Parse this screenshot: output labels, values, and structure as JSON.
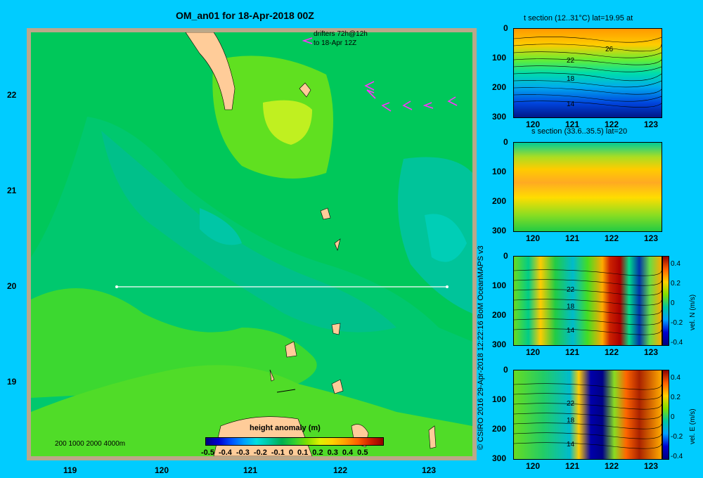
{
  "title": "OM_an01 for 18-Apr-2018 00Z",
  "map": {
    "y_ticks": [
      "22",
      "21",
      "20",
      "19"
    ],
    "x_ticks": [
      "119",
      "120",
      "121",
      "122",
      "123"
    ],
    "drifters_label_line1": "drifters 72h@12h",
    "drifters_label_line2": "to 18-Apr 12Z",
    "depth_legend": "200  1000  2000  4000m",
    "section_lat": 20
  },
  "colorbar": {
    "title": "height anomaly  (m)",
    "ticks": [
      "-0.5",
      "-0.4",
      "-0.3",
      "-0.2",
      "-0.1",
      "0",
      "0.1",
      "0.2",
      "0.3",
      "0.4",
      "0.5"
    ],
    "colors": [
      "#000080",
      "#0000d0",
      "#0050ff",
      "#00a0ff",
      "#00e0e0",
      "#00c8a0",
      "#00b050",
      "#30d030",
      "#80e000",
      "#e0f000",
      "#ffd000",
      "#ffa000",
      "#ff6000",
      "#d02000",
      "#900000"
    ]
  },
  "copyright": "© CSIRO 2016   29-Apr-2018 12:22:16 BoM OceanMAPS v3",
  "panels": [
    {
      "title": "t section (12..31°C) lat=19.95 at",
      "contours": [
        "26",
        "22",
        "18",
        "14"
      ]
    },
    {
      "title": "s section (33.6..35.5) lat=20",
      "contours": []
    },
    {
      "title": "",
      "contours": [
        "22",
        "18",
        "14"
      ],
      "cbar_label": "vel. N  (m/s)"
    },
    {
      "title": "",
      "contours": [
        "22",
        "18",
        "14"
      ],
      "cbar_label": "vel. E  (m/s)"
    }
  ],
  "panel_axes": {
    "depth_ticks": [
      "0",
      "100",
      "200",
      "300"
    ],
    "lon_ticks": [
      "120",
      "121",
      "122",
      "123"
    ]
  },
  "vel_cbar_ticks": [
    "0.4",
    "0.2",
    "0",
    "-0.2",
    "-0.4"
  ]
}
